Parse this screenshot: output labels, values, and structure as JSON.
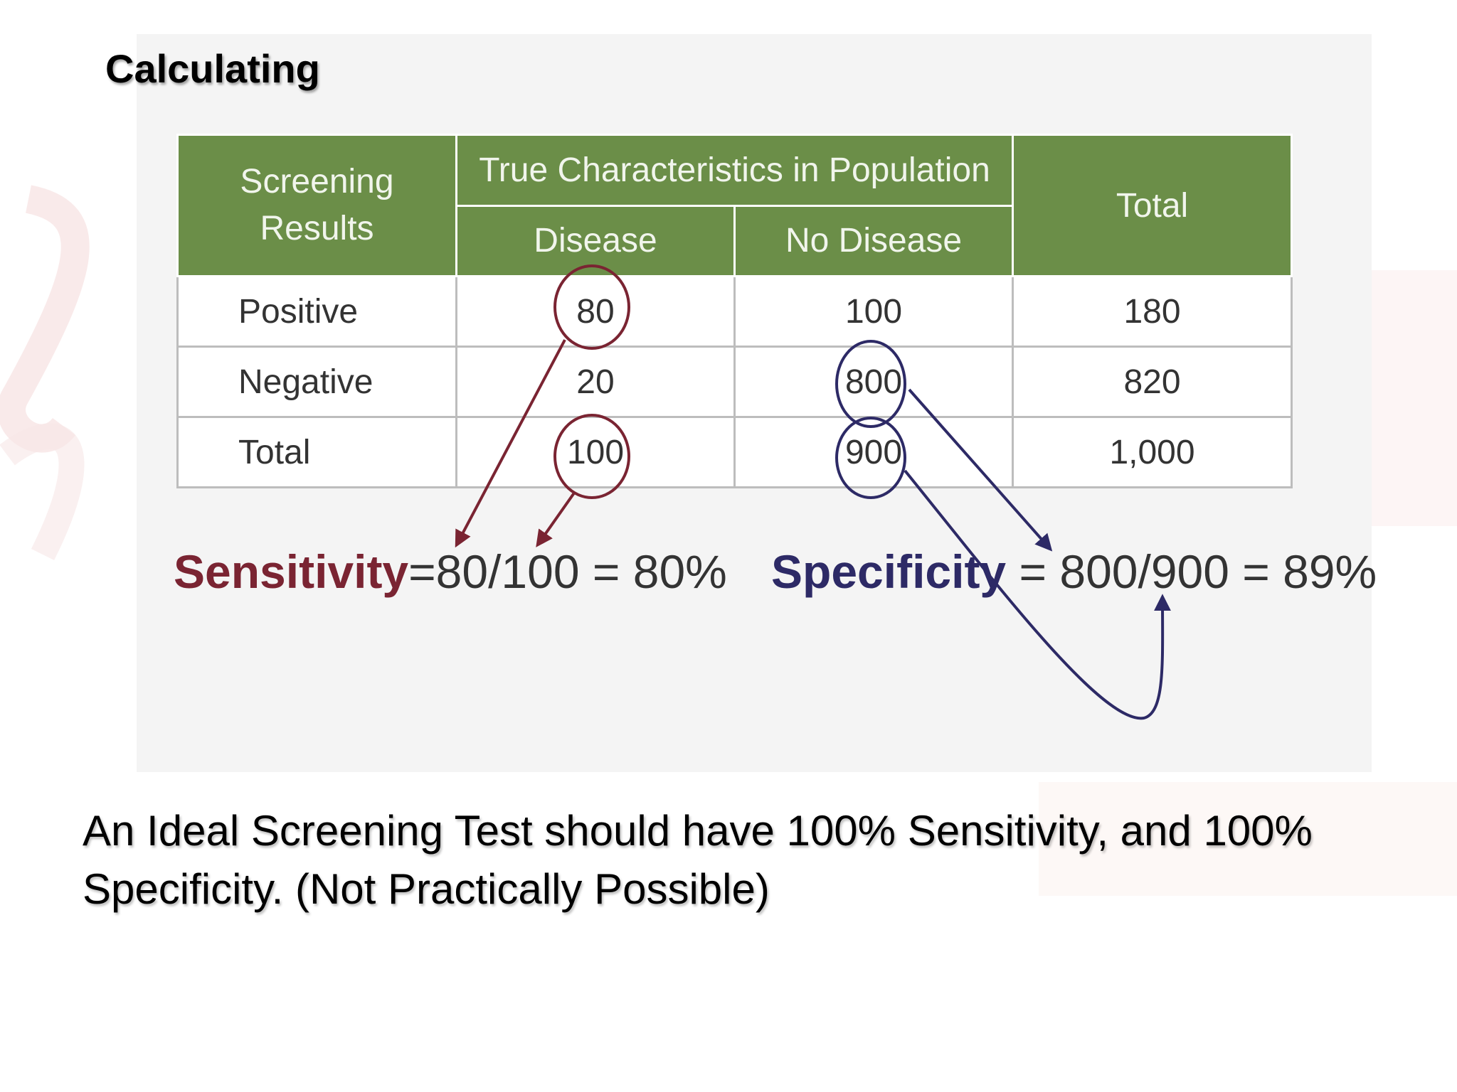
{
  "slide": {
    "title": "Calculating"
  },
  "table": {
    "row_header": "Screening Results",
    "group_header": "True Characteristics in Population",
    "col_disease": "Disease",
    "col_no_disease": "No Disease",
    "col_total": "Total",
    "rows": [
      {
        "label": "Positive",
        "disease": "80",
        "no_disease": "100",
        "total": "180"
      },
      {
        "label": "Negative",
        "disease": "20",
        "no_disease": "800",
        "total": "820"
      },
      {
        "label": "Total",
        "disease": "100",
        "no_disease": "900",
        "total": "1,000"
      }
    ]
  },
  "formulas": {
    "sensitivity_term": "Sensitivity",
    "sensitivity_expr": "=80/100 = 80%",
    "specificity_term": "Specificity",
    "specificity_expr": " = 800/900 = 89%"
  },
  "footer": {
    "text": "An Ideal Screening Test should have 100% Sensitivity, and 100% Specificity. (Not Practically Possible)"
  },
  "colors": {
    "header_green": "#6b8e48",
    "sensitivity": "#7a2432",
    "specificity": "#2d2a66"
  }
}
